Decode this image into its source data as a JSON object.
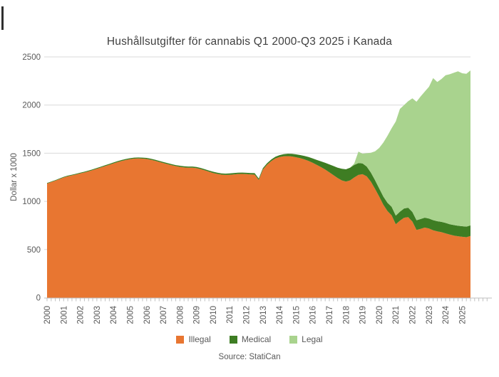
{
  "title": "Hushållsutgifter för cannabis Q1 2000-Q3 2025 i Kanada",
  "y_axis_title": "Dollar x 1000",
  "source": "Source: StatiCan",
  "colors": {
    "illegal": "#E87631",
    "medical": "#3E7D23",
    "legal": "#A9D38E",
    "title_text": "#404040",
    "axis_text": "#595959",
    "gridline": "#D9D9D9",
    "axis_line": "#BFBFBF"
  },
  "chart_data": {
    "type": "area",
    "stacked": true,
    "title": "Hushållsutgifter för cannabis Q1 2000-Q3 2025 i Kanada",
    "xlabel": "",
    "ylabel": "Dollar x 1000",
    "ylim": [
      0,
      2500
    ],
    "y_ticks": [
      0,
      500,
      1000,
      1500,
      2000,
      2500
    ],
    "grid": "horizontal",
    "legend_position": "bottom",
    "x_range": {
      "start": "2000 Q1",
      "end": "2025 Q3",
      "frequency": "quarterly"
    },
    "year_labels": [
      "2000",
      "2001",
      "2002",
      "2003",
      "2004",
      "2005",
      "2006",
      "2007",
      "2008",
      "2009",
      "2010",
      "2011",
      "2012",
      "2013",
      "2014",
      "2015",
      "2016",
      "2017",
      "2018",
      "2019",
      "2020",
      "2021",
      "2022",
      "2023",
      "2024",
      "2025"
    ],
    "series": [
      {
        "name": "Illegal",
        "color": "#E87631",
        "values": [
          1185,
          1200,
          1215,
          1232,
          1248,
          1260,
          1270,
          1280,
          1290,
          1300,
          1312,
          1325,
          1338,
          1352,
          1366,
          1380,
          1394,
          1408,
          1420,
          1430,
          1438,
          1444,
          1446,
          1444,
          1440,
          1432,
          1422,
          1410,
          1398,
          1386,
          1375,
          1366,
          1358,
          1352,
          1350,
          1350,
          1345,
          1335,
          1322,
          1308,
          1295,
          1285,
          1278,
          1275,
          1276,
          1280,
          1284,
          1285,
          1283,
          1280,
          1278,
          1222,
          1330,
          1380,
          1418,
          1445,
          1460,
          1468,
          1470,
          1466,
          1458,
          1448,
          1436,
          1420,
          1400,
          1378,
          1355,
          1330,
          1302,
          1272,
          1242,
          1218,
          1205,
          1218,
          1248,
          1275,
          1282,
          1260,
          1205,
          1130,
          1050,
          965,
          900,
          855,
          762,
          800,
          830,
          836,
          790,
          703,
          715,
          728,
          718,
          700,
          688,
          680,
          668,
          655,
          645,
          638,
          632,
          628,
          640
        ]
      },
      {
        "name": "Medical",
        "color": "#3E7D23",
        "values": [
          6,
          6,
          6,
          6,
          7,
          7,
          7,
          7,
          8,
          8,
          8,
          8,
          9,
          9,
          9,
          9,
          10,
          10,
          10,
          10,
          10,
          10,
          10,
          10,
          11,
          11,
          11,
          11,
          11,
          11,
          11,
          11,
          12,
          12,
          12,
          12,
          12,
          12,
          12,
          12,
          13,
          13,
          13,
          13,
          14,
          14,
          14,
          14,
          14,
          14,
          15,
          15,
          15,
          16,
          17,
          18,
          20,
          22,
          25,
          28,
          30,
          33,
          36,
          40,
          45,
          52,
          60,
          70,
          82,
          95,
          108,
          120,
          128,
          132,
          130,
          122,
          112,
          102,
          95,
          90,
          86,
          85,
          86,
          88,
          90,
          93,
          96,
          98,
          100,
          101,
          102,
          103,
          104,
          105,
          106,
          107,
          108,
          108,
          109,
          109,
          110,
          110,
          110
        ]
      },
      {
        "name": "Legal",
        "color": "#A9D38E",
        "values": [
          0,
          0,
          0,
          0,
          0,
          0,
          0,
          0,
          0,
          0,
          0,
          0,
          0,
          0,
          0,
          0,
          0,
          0,
          0,
          0,
          0,
          0,
          0,
          0,
          0,
          0,
          0,
          0,
          0,
          0,
          0,
          0,
          0,
          0,
          0,
          0,
          0,
          0,
          0,
          0,
          0,
          0,
          0,
          0,
          0,
          0,
          0,
          0,
          0,
          0,
          0,
          0,
          0,
          0,
          0,
          0,
          0,
          0,
          0,
          0,
          0,
          0,
          0,
          0,
          0,
          0,
          0,
          0,
          0,
          0,
          0,
          0,
          0,
          0,
          15,
          120,
          101,
          138,
          205,
          300,
          419,
          560,
          694,
          817,
          978,
          1067,
          1074,
          1106,
          1180,
          1231,
          1273,
          1309,
          1368,
          1475,
          1446,
          1483,
          1534,
          1557,
          1581,
          1603,
          1588,
          1587,
          1610
        ]
      }
    ]
  }
}
